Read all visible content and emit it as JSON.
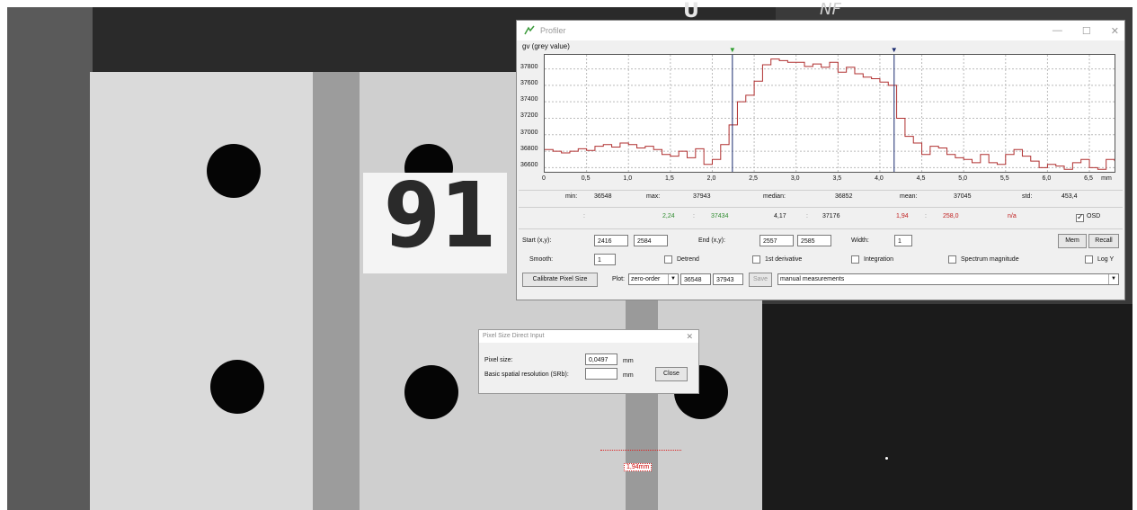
{
  "profiler": {
    "title": "Profiler",
    "window_controls": {
      "minimize": "—",
      "maximize": "☐",
      "close": "✕"
    },
    "y_axis_label": "gv (grey value)",
    "x_unit": "mm",
    "cursor_markers": {
      "left_color": "#2e9e2e",
      "right_color": "#1a2a6e"
    },
    "stats": {
      "min_label": "min:",
      "min": "36548",
      "max_label": "max:",
      "max": "37943",
      "median_label": "median:",
      "median": "36852",
      "mean_label": "mean:",
      "mean": "37045",
      "std_label": "std:",
      "std": "453,4"
    },
    "cursor_values": {
      "colon1": ":",
      "left_pos": "2,24",
      "colon2": ":",
      "left_val": "37434",
      "right_pos": "4,17",
      "colon3": ":",
      "right_val": "37176",
      "dist": "1,94",
      "colon4": ":",
      "delta": "258,0",
      "na": "n/a",
      "osd_label": "OSD"
    },
    "row_start": {
      "start_label": "Start (x,y):",
      "start_x": "2416",
      "start_y": "2584",
      "end_label": "End (x,y):",
      "end_x": "2557",
      "end_y": "2585",
      "width_label": "Width:",
      "width": "1",
      "mem": "Mem",
      "recall": "Recall"
    },
    "row_smooth": {
      "smooth_label": "Smooth:",
      "smooth": "1",
      "detrend": "Detrend",
      "first_derivative": "1st derivative",
      "integration": "Integration",
      "spectrum": "Spectrum magnitude",
      "logy": "Log Y"
    },
    "row_plot": {
      "calibrate": "Calibrate Pixel Size",
      "plot_label": "Plot:",
      "plot_mode": "zero-order",
      "range_min": "36548",
      "range_max": "37943",
      "save": "Save",
      "measurement_set": "manual measurements"
    }
  },
  "chart_data": {
    "type": "line",
    "title": "",
    "ylabel": "gv (grey value)",
    "xlabel": "mm",
    "xlim": [
      0,
      6.8
    ],
    "ylim": [
      36550,
      37970
    ],
    "x_ticks": [
      "0",
      "0,5",
      "1,0",
      "1,5",
      "2,0",
      "2,5",
      "3,0",
      "3,5",
      "4,0",
      "4,5",
      "5,0",
      "5,5",
      "6,0",
      "6,5",
      "mm"
    ],
    "y_ticks": [
      "37800",
      "37600",
      "37400",
      "37200",
      "37000",
      "36800",
      "36600"
    ],
    "grid": true,
    "cursors_x": [
      2.24,
      4.17
    ],
    "series": [
      {
        "color": "#b03030",
        "x": [
          0,
          0.1,
          0.2,
          0.3,
          0.4,
          0.5,
          0.6,
          0.7,
          0.8,
          0.9,
          1.0,
          1.1,
          1.2,
          1.3,
          1.4,
          1.5,
          1.6,
          1.7,
          1.8,
          1.9,
          2.0,
          2.1,
          2.2,
          2.3,
          2.4,
          2.5,
          2.6,
          2.7,
          2.8,
          2.9,
          3.0,
          3.1,
          3.2,
          3.3,
          3.4,
          3.5,
          3.6,
          3.7,
          3.8,
          3.9,
          4.0,
          4.1,
          4.2,
          4.3,
          4.4,
          4.5,
          4.6,
          4.7,
          4.8,
          4.9,
          5.0,
          5.1,
          5.2,
          5.3,
          5.4,
          5.5,
          5.6,
          5.7,
          5.8,
          5.9,
          6.0,
          6.1,
          6.2,
          6.3,
          6.4,
          6.5,
          6.6,
          6.7,
          6.8
        ],
        "values": [
          36820,
          36800,
          36780,
          36800,
          36830,
          36810,
          36860,
          36880,
          36850,
          36900,
          36880,
          36840,
          36860,
          36820,
          36760,
          36740,
          36800,
          36720,
          36830,
          36640,
          36700,
          36880,
          37120,
          37400,
          37480,
          37650,
          37850,
          37920,
          37900,
          37880,
          37880,
          37830,
          37860,
          37820,
          37880,
          37760,
          37820,
          37740,
          37700,
          37680,
          37640,
          37600,
          37200,
          36980,
          36900,
          36760,
          36860,
          36840,
          36760,
          36720,
          36700,
          36660,
          36760,
          36660,
          36640,
          36760,
          36820,
          36740,
          36680,
          36600,
          36640,
          36620,
          36580,
          36660,
          36700,
          36600,
          36580,
          36700,
          36680
        ]
      }
    ]
  },
  "pixel_dialog": {
    "title": "Pixel Size Direct Input",
    "close_x": "✕",
    "pixel_size_label": "Pixel size:",
    "pixel_size": "0,0497",
    "unit1": "mm",
    "srb_label": "Basic spatial resolution (SRb):",
    "srb": "",
    "unit2": "mm",
    "close_button": "Close"
  },
  "background": {
    "marker_digits": "91",
    "top_marking_1": "U",
    "top_marking_2": "NF",
    "measurement_label": "1,94mm"
  }
}
